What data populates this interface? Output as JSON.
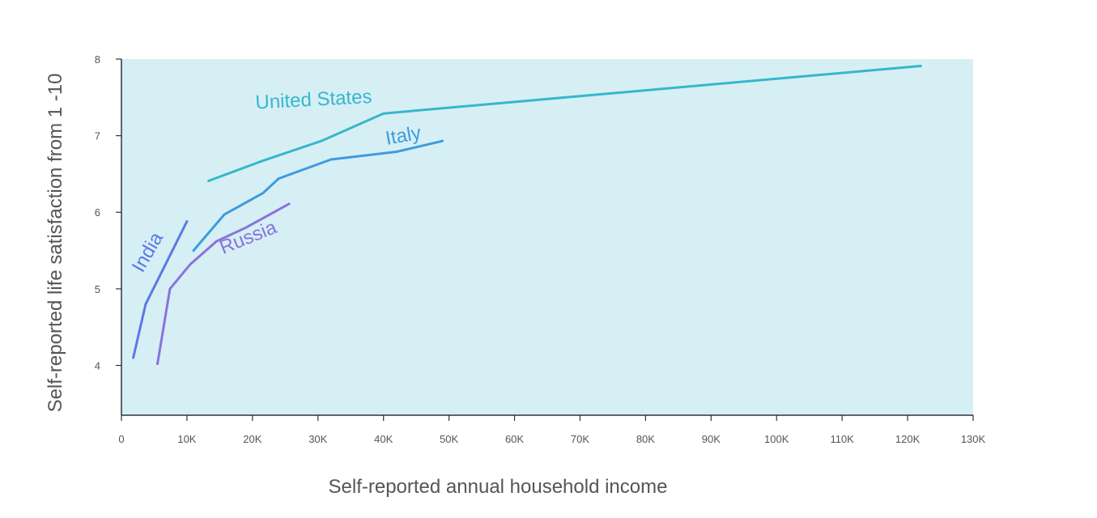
{
  "chart_data": {
    "type": "line",
    "title": "",
    "xlabel": "Self-reported annual household income",
    "ylabel": "Self-reported life satisfaction from 1 -10",
    "xlim": [
      0,
      130000
    ],
    "ylim": [
      3.35,
      8
    ],
    "x_ticks": [
      {
        "value": 0,
        "label": "0"
      },
      {
        "value": 10000,
        "label": "10K"
      },
      {
        "value": 20000,
        "label": "20K"
      },
      {
        "value": 30000,
        "label": "30K"
      },
      {
        "value": 40000,
        "label": "40K"
      },
      {
        "value": 50000,
        "label": "50K"
      },
      {
        "value": 60000,
        "label": "60K"
      },
      {
        "value": 70000,
        "label": "70K"
      },
      {
        "value": 80000,
        "label": "80K"
      },
      {
        "value": 90000,
        "label": "90K"
      },
      {
        "value": 100000,
        "label": "100K"
      },
      {
        "value": 110000,
        "label": "110K"
      },
      {
        "value": 120000,
        "label": "120K"
      },
      {
        "value": 130000,
        "label": "130K"
      }
    ],
    "y_ticks": [
      {
        "value": 4,
        "label": "4"
      },
      {
        "value": 5,
        "label": "5"
      },
      {
        "value": 6,
        "label": "6"
      },
      {
        "value": 7,
        "label": "7"
      },
      {
        "value": 8,
        "label": "8"
      }
    ],
    "grid": false,
    "plot_background": "#d6eff5",
    "series": [
      {
        "name": "United States",
        "color": "#36b7cc",
        "label_anchor": {
          "x": 20500,
          "y": 7.35,
          "angle": -3
        },
        "points": [
          [
            13300,
            6.41
          ],
          [
            21500,
            6.67
          ],
          [
            30500,
            6.93
          ],
          [
            40000,
            7.29
          ],
          [
            122000,
            7.91
          ]
        ]
      },
      {
        "name": "Italy",
        "color": "#3d9be0",
        "label_anchor": {
          "x": 40500,
          "y": 6.88,
          "angle": -10
        },
        "points": [
          [
            11000,
            5.5
          ],
          [
            15700,
            5.97
          ],
          [
            21600,
            6.25
          ],
          [
            24000,
            6.44
          ],
          [
            32000,
            6.69
          ],
          [
            42000,
            6.79
          ],
          [
            49000,
            6.93
          ]
        ]
      },
      {
        "name": "Russia",
        "color": "#8a72dc",
        "label_anchor": {
          "x": 15500,
          "y": 5.45,
          "angle": -22
        },
        "points": [
          [
            5500,
            4.02
          ],
          [
            7400,
            5.0
          ],
          [
            10500,
            5.32
          ],
          [
            14500,
            5.62
          ],
          [
            19000,
            5.8
          ],
          [
            25600,
            6.11
          ]
        ]
      },
      {
        "name": "India",
        "color": "#5a7ae3",
        "label_anchor": {
          "x": 3200,
          "y": 5.2,
          "angle": -60
        },
        "points": [
          [
            1800,
            4.1
          ],
          [
            3700,
            4.8
          ],
          [
            10000,
            5.88
          ]
        ]
      }
    ]
  }
}
